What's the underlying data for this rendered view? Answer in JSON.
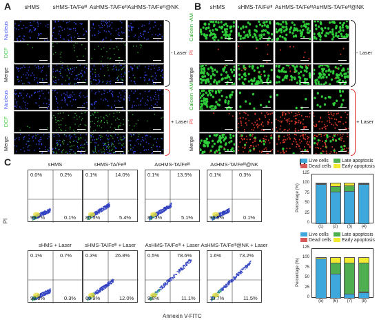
{
  "panel_a": {
    "label": "A",
    "columns": [
      "sHMS",
      "sHMS-TA/Feᴵᴵᴵ",
      "AsHMS-TA/Feᴵᴵᴵ",
      "AsHMS-TA/Feᴵᴵᴵ@NK"
    ],
    "rows": [
      "Nucleus",
      "DCF",
      "Merge",
      "Nucleus",
      "DCF",
      "Merge"
    ],
    "condition_minus": "- Laser",
    "condition_plus": "+ Laser"
  },
  "panel_b": {
    "label": "B",
    "columns": [
      "sHMS",
      "sHMS-TA/Feᴵᴵᴵ",
      "AsHMS-TA/Feᴵᴵᴵ",
      "AsHMS-TA/Feᴵᴵᴵ@NK"
    ],
    "rows": [
      "Calcein -AM",
      "PI",
      "Merge",
      "Calcein -AM",
      "PI",
      "Merge"
    ],
    "condition_minus": "- Laser",
    "condition_plus": "+ Laser"
  },
  "panel_c": {
    "label": "C",
    "y_axis_label": "PI",
    "x_axis_label": "Annexin V-FITC",
    "plots": [
      {
        "title": "sHMS",
        "ul": "0.0%",
        "ur": "0.2%",
        "ll": "99.7%",
        "lr": "0.1%"
      },
      {
        "title": "sHMS-TA/Feᴵᴵᴵ",
        "ul": "0.1%",
        "ur": "14.0%",
        "ll": "80.5%",
        "lr": "5.4%"
      },
      {
        "title": "AsHMS-TA/Feᴵᴵᴵ",
        "ul": "0.1%",
        "ur": "13.5%",
        "ll": "81.3%",
        "lr": "5.1%"
      },
      {
        "title": "AsHMS-TA/Feᴵᴵᴵ@NK",
        "ul": "0.1%",
        "ur": "0.3%",
        "ll": "99.5%",
        "lr": "0.1%"
      },
      {
        "title": "sHMS + Laser",
        "ul": "0.1%",
        "ur": "0.7%",
        "ll": "98.9%",
        "lr": "0.3%"
      },
      {
        "title": "sHMS-TA/Feᴵᴵᴵ + Laser",
        "ul": "0.3%",
        "ur": "26.8%",
        "ll": "60.9%",
        "lr": "12.0%"
      },
      {
        "title": "AsHMS-TA/Feᴵᴵᴵ + Laser",
        "ul": "0.5%",
        "ur": "78.6%",
        "ll": "9.8%",
        "lr": "11.1%"
      },
      {
        "title": "AsHMS-TA/Feᴵᴵᴵ@NK + Laser",
        "ul": "1.6%",
        "ur": "73.2%",
        "ll": "13.7%",
        "lr": "11.5%"
      }
    ]
  },
  "panel_d": {
    "label": "D",
    "ylabel": "Percentage (%)",
    "legend": [
      "Live cells",
      "Late apoptosis",
      "Dead cells",
      "Early apoptosis"
    ],
    "ticks": [
      "0",
      "25",
      "50",
      "75",
      "100",
      "125"
    ]
  },
  "colors": {
    "live": "#3ea8dc",
    "dead": "#d65a5a",
    "late": "#4fae4f",
    "early": "#f2ea30",
    "brace_minus": "#222222",
    "brace_plus": "#e03030"
  },
  "chart_data": [
    {
      "type": "bar",
      "stacked": true,
      "categories": [
        "(1)",
        "(2)",
        "(3)",
        "(4)"
      ],
      "series": [
        {
          "name": "Live cells",
          "values": [
            99.7,
            80.5,
            81.3,
            99.5
          ]
        },
        {
          "name": "Dead cells",
          "values": [
            0.0,
            0.1,
            0.1,
            0.1
          ]
        },
        {
          "name": "Late apoptosis",
          "values": [
            0.2,
            14.0,
            13.5,
            0.3
          ]
        },
        {
          "name": "Early apoptosis",
          "values": [
            0.1,
            5.4,
            5.1,
            0.1
          ]
        }
      ],
      "ylabel": "Percentage (%)",
      "ylim": [
        0,
        125
      ]
    },
    {
      "type": "bar",
      "stacked": true,
      "categories": [
        "(5)",
        "(6)",
        "(7)",
        "(8)"
      ],
      "series": [
        {
          "name": "Live cells",
          "values": [
            98.9,
            60.9,
            9.8,
            13.7
          ]
        },
        {
          "name": "Dead cells",
          "values": [
            0.1,
            0.3,
            0.5,
            1.6
          ]
        },
        {
          "name": "Late apoptosis",
          "values": [
            0.7,
            26.8,
            78.6,
            73.2
          ]
        },
        {
          "name": "Early apoptosis",
          "values": [
            0.3,
            12.0,
            11.1,
            11.5
          ]
        }
      ],
      "ylabel": "Percentage (%)",
      "ylim": [
        0,
        125
      ]
    }
  ]
}
